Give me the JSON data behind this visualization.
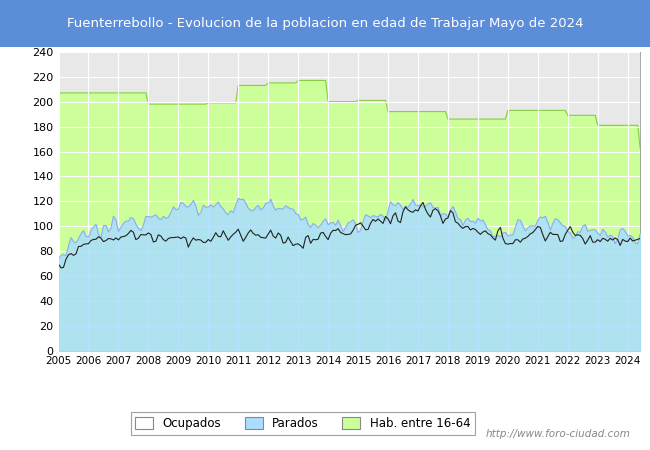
{
  "title": "Fuenterrebollo - Evolucion de la poblacion en edad de Trabajar Mayo de 2024",
  "title_bg_color": "#5b8dd9",
  "title_text_color": "#ffffff",
  "ylim": [
    0,
    240
  ],
  "yticks": [
    0,
    20,
    40,
    60,
    80,
    100,
    120,
    140,
    160,
    180,
    200,
    220,
    240
  ],
  "xlim_start": 2005.0,
  "xlim_end": 2024.42,
  "xtick_years": [
    2005,
    2006,
    2007,
    2008,
    2009,
    2010,
    2011,
    2012,
    2013,
    2014,
    2015,
    2016,
    2017,
    2018,
    2019,
    2020,
    2021,
    2022,
    2023,
    2024
  ],
  "watermark": "http://www.foro-ciudad.com",
  "plot_bg_color": "#e8e8e8",
  "hab_fill_color": "#ccff99",
  "hab_line_color": "#88cc44",
  "parados_fill_color": "#aaddff",
  "parados_line_color": "#88aaee",
  "ocupados_color": "#222222",
  "hab_annual": [
    207,
    207,
    207,
    198,
    198,
    199,
    213,
    215,
    217,
    200,
    201,
    192,
    192,
    186,
    186,
    193,
    193,
    189,
    181,
    181,
    181
  ],
  "parados_base": [
    75,
    95,
    100,
    110,
    115,
    115,
    118,
    115,
    107,
    100,
    105,
    113,
    118,
    112,
    98,
    95,
    105,
    100,
    93,
    93
  ],
  "ocupados_base": [
    72,
    88,
    93,
    93,
    92,
    88,
    95,
    90,
    87,
    93,
    98,
    107,
    115,
    105,
    93,
    90,
    95,
    92,
    90,
    90
  ]
}
